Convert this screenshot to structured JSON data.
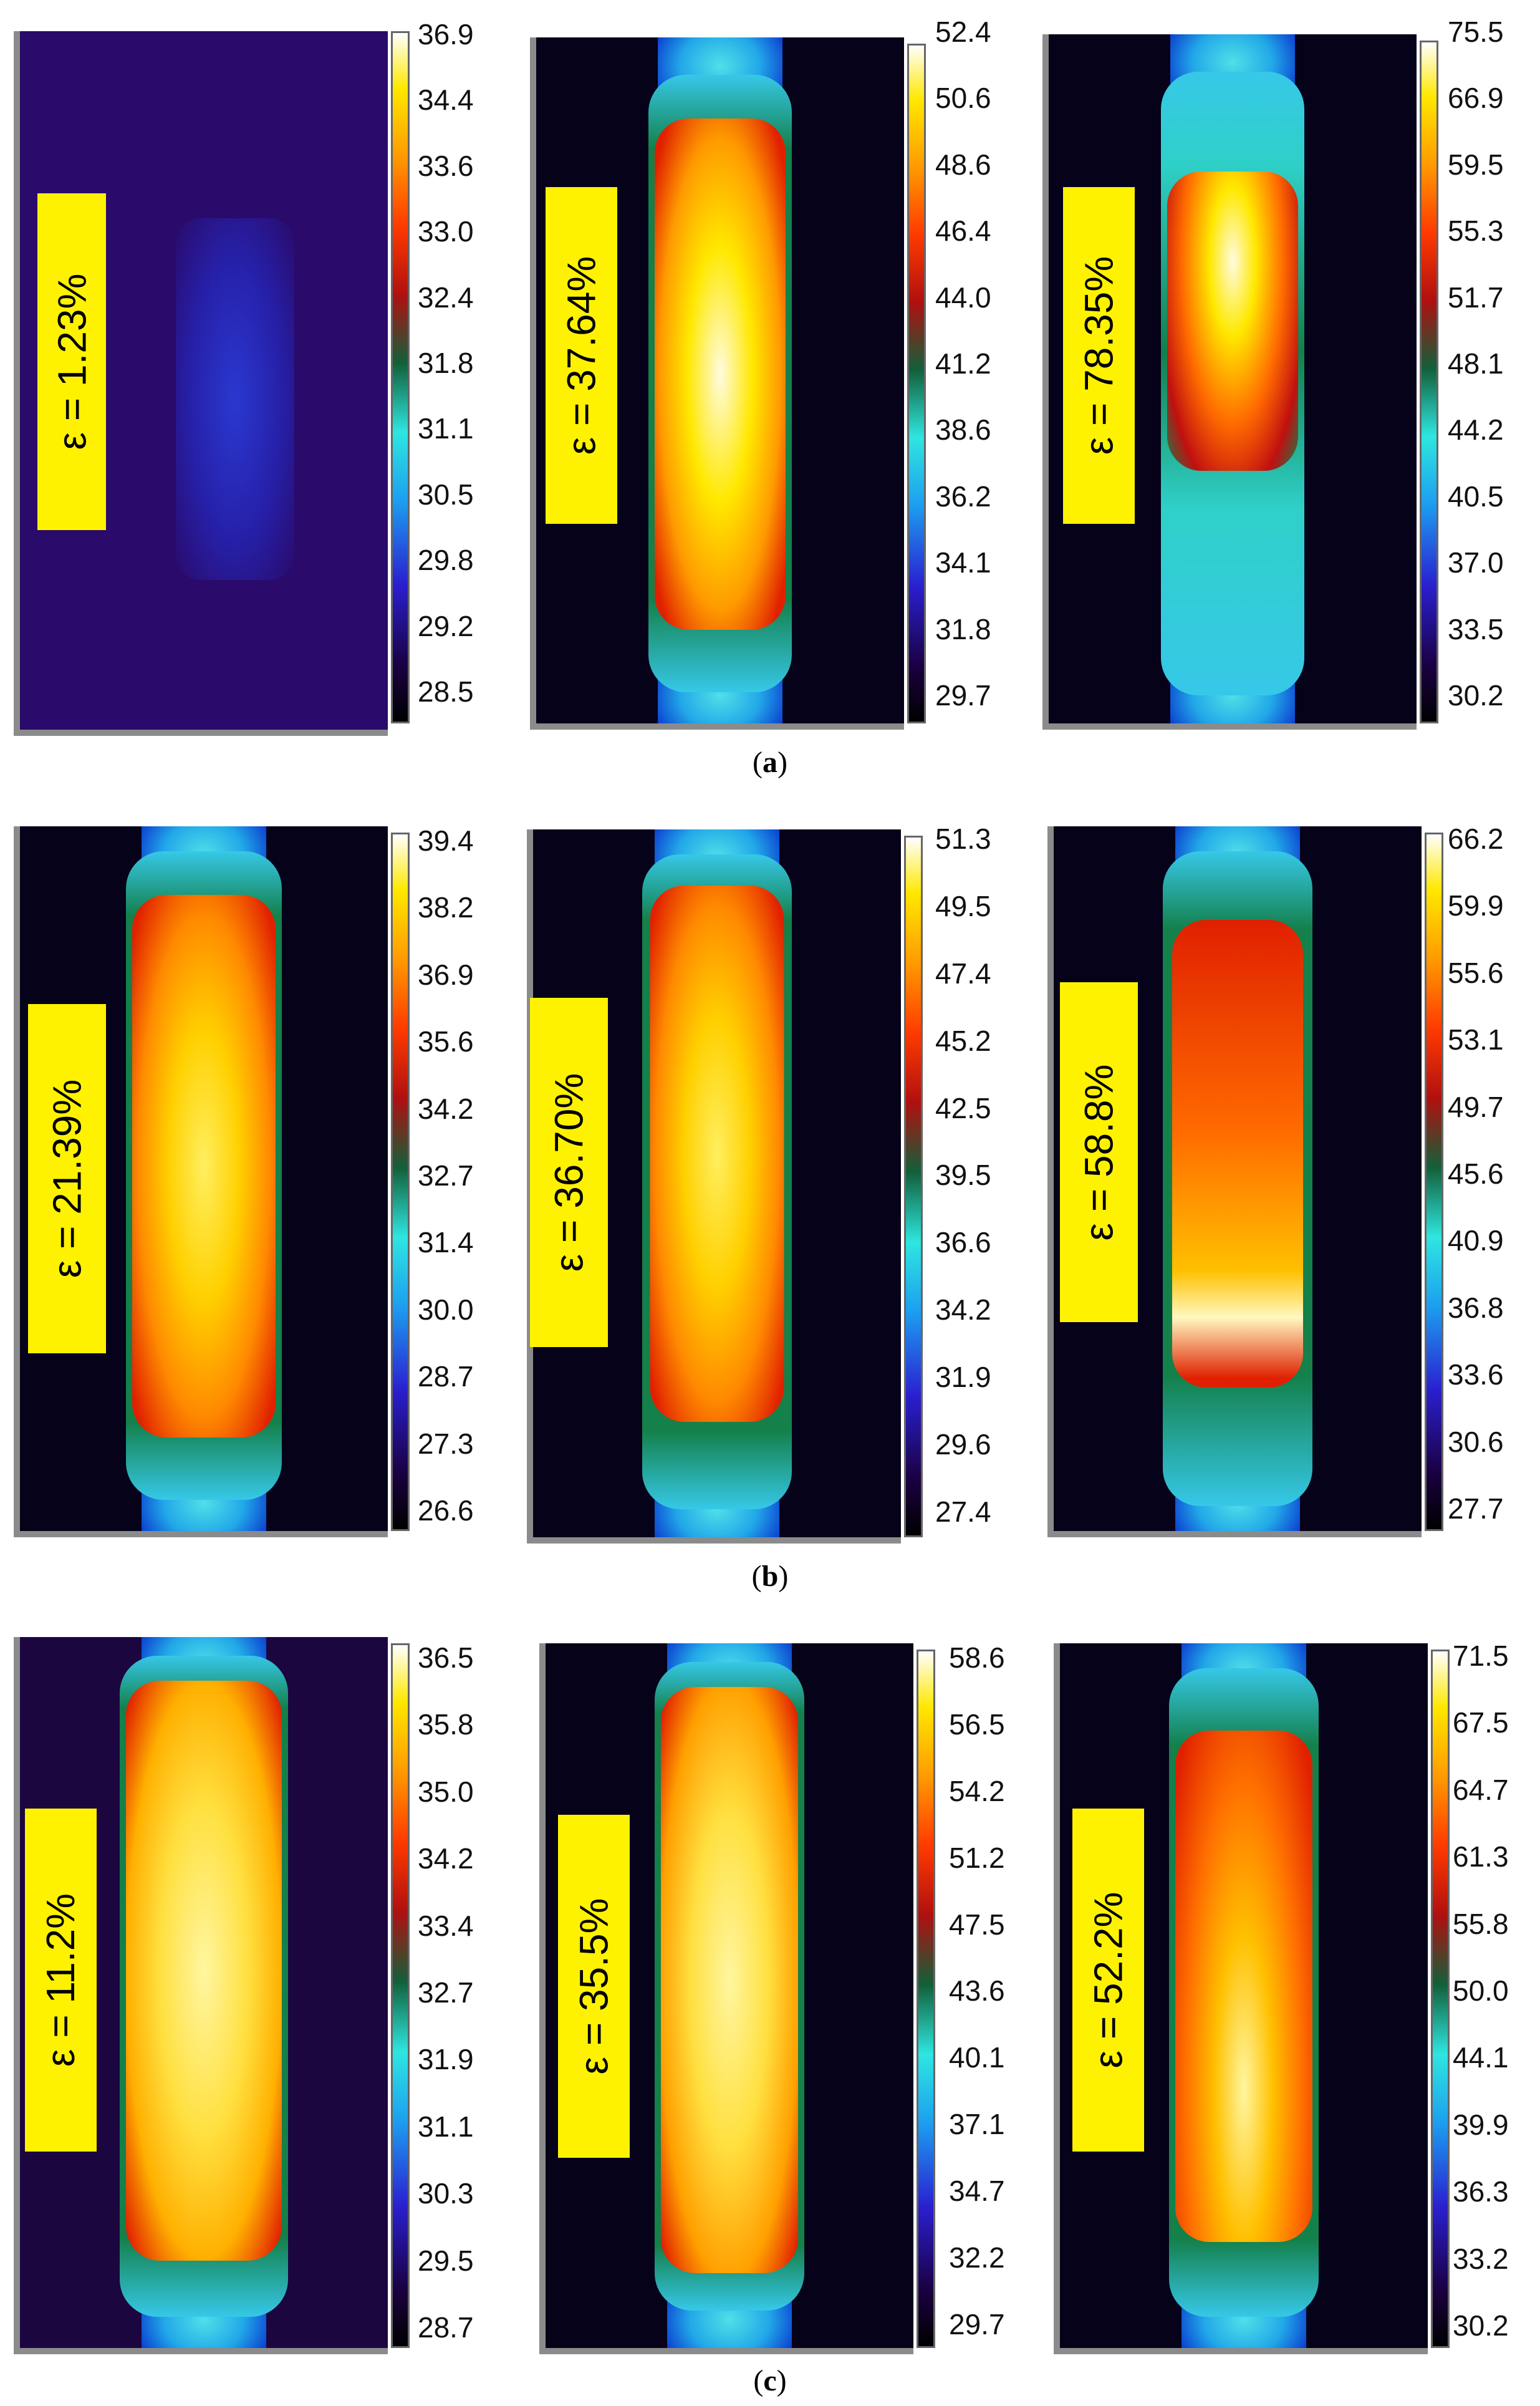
{
  "rows": [
    {
      "caption_letter": "a",
      "panels": [
        {
          "strain": "ε = 1.23%",
          "ticks": [
            "36.9",
            "34.4",
            "33.6",
            "33.0",
            "32.4",
            "31.8",
            "31.1",
            "30.5",
            "29.8",
            "29.2",
            "28.5"
          ]
        },
        {
          "strain": "ε = 37.64%",
          "ticks": [
            "52.4",
            "50.6",
            "48.6",
            "46.4",
            "44.0",
            "41.2",
            "38.6",
            "36.2",
            "34.1",
            "31.8",
            "29.7"
          ]
        },
        {
          "strain": "ε = 78.35%",
          "ticks": [
            "75.5",
            "66.9",
            "59.5",
            "55.3",
            "51.7",
            "48.1",
            "44.2",
            "40.5",
            "37.0",
            "33.5",
            "30.2"
          ]
        }
      ]
    },
    {
      "caption_letter": "b",
      "panels": [
        {
          "strain": "ε = 21.39%",
          "ticks": [
            "39.4",
            "38.2",
            "36.9",
            "35.6",
            "34.2",
            "32.7",
            "31.4",
            "30.0",
            "28.7",
            "27.3",
            "26.6"
          ]
        },
        {
          "strain": "ε = 36.70%",
          "ticks": [
            "51.3",
            "49.5",
            "47.4",
            "45.2",
            "42.5",
            "39.5",
            "36.6",
            "34.2",
            "31.9",
            "29.6",
            "27.4"
          ]
        },
        {
          "strain": "ε = 58.8%",
          "ticks": [
            "66.2",
            "59.9",
            "55.6",
            "53.1",
            "49.7",
            "45.6",
            "40.9",
            "36.8",
            "33.6",
            "30.6",
            "27.7"
          ]
        }
      ]
    },
    {
      "caption_letter": "c",
      "panels": [
        {
          "strain": "ε = 11.2%",
          "ticks": [
            "36.5",
            "35.8",
            "35.0",
            "34.2",
            "33.4",
            "32.7",
            "31.9",
            "31.1",
            "30.3",
            "29.5",
            "28.7"
          ]
        },
        {
          "strain": "ε = 35.5%",
          "ticks": [
            "58.6",
            "56.5",
            "54.2",
            "51.2",
            "47.5",
            "43.6",
            "40.1",
            "37.1",
            "34.7",
            "32.2",
            "29.7"
          ]
        },
        {
          "strain": "ε = 52.2%",
          "ticks": [
            "71.5",
            "67.5",
            "64.7",
            "61.3",
            "55.8",
            "50.0",
            "44.1",
            "39.9",
            "36.3",
            "33.2",
            "30.2"
          ]
        }
      ]
    }
  ]
}
